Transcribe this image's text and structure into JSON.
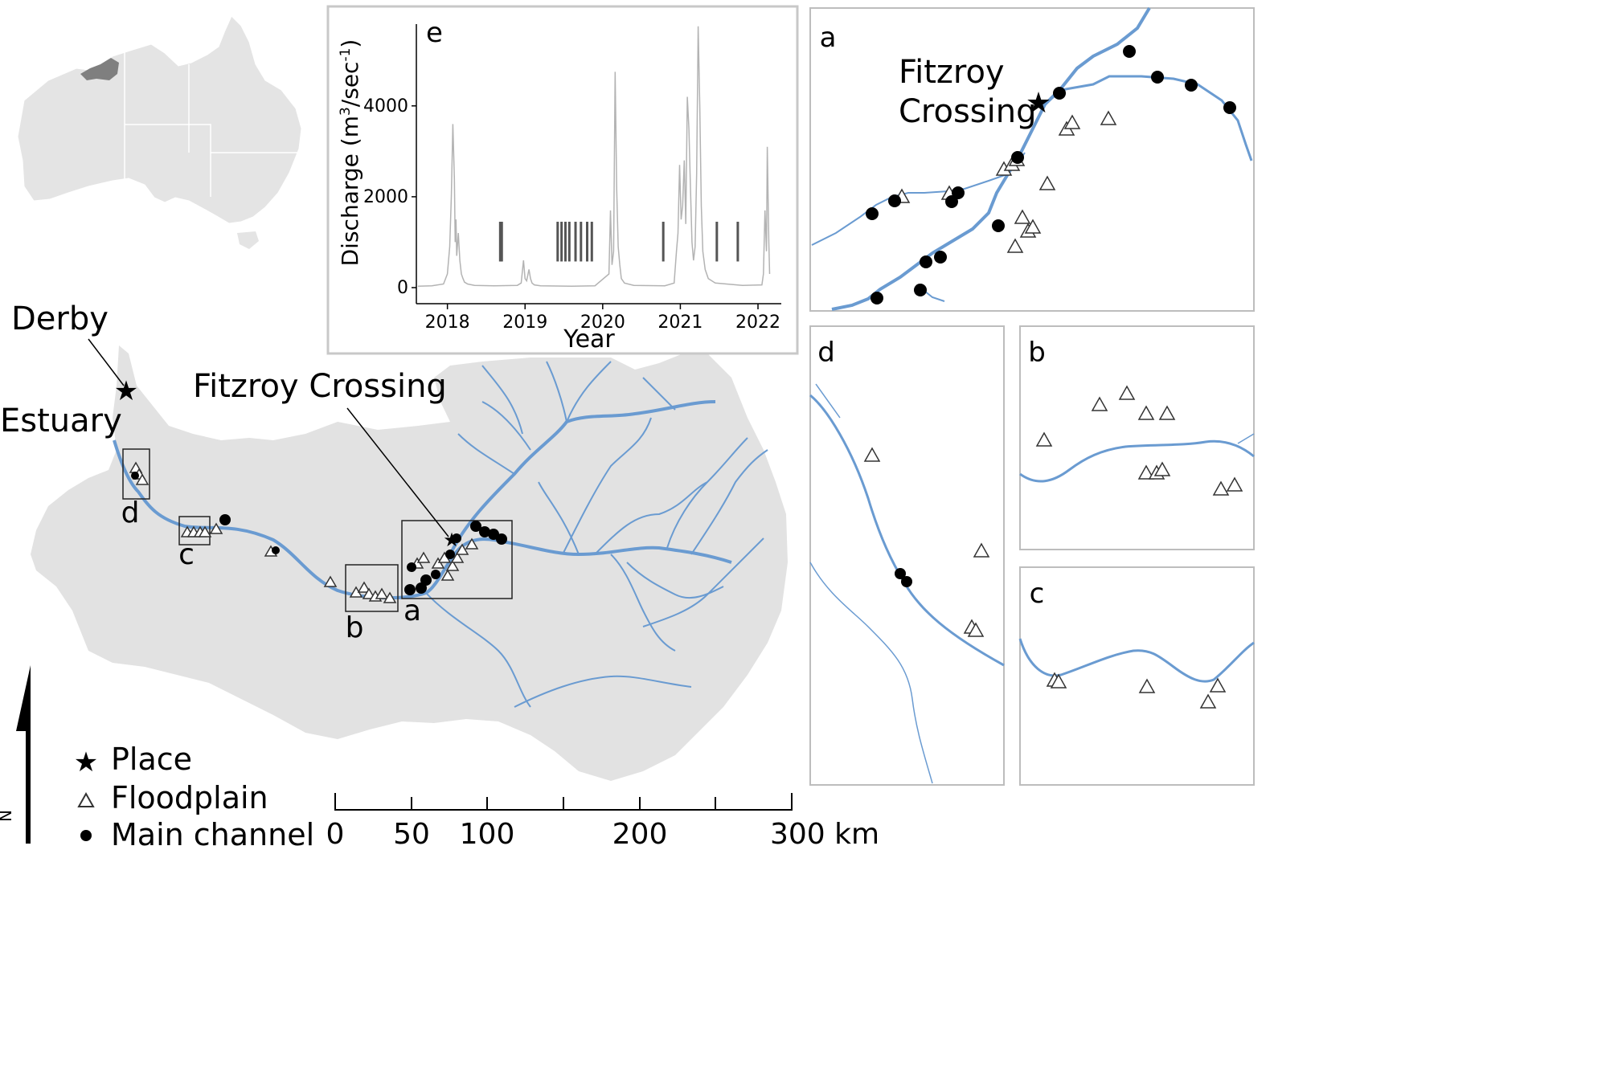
{
  "labels": {
    "derby": "Derby",
    "estuary": "Estuary",
    "fitzroy_crossing": "Fitzroy Crossing",
    "inset_a_place_line1": "Fitzroy",
    "inset_a_place_line2": "Crossing"
  },
  "box_letters": {
    "a": "a",
    "b": "b",
    "c": "c",
    "d": "d",
    "e": "e"
  },
  "legend": {
    "place": "Place",
    "floodplain": "Floodplain",
    "main_channel": "Main channel",
    "north": "N"
  },
  "scale_bar": {
    "labels": [
      "0",
      "50",
      "100",
      "200",
      "300 km"
    ]
  },
  "chart_data": {
    "type": "line",
    "title": "e",
    "xlabel": "Year",
    "ylabel_prefix": "Discharge (m",
    "ylabel_sup1": "3",
    "ylabel_mid": "/sec",
    "ylabel_sup2": "-1",
    "ylabel_suffix": ")",
    "xlim": [
      2017.6,
      2022.3
    ],
    "ylim": [
      0,
      5800
    ],
    "x_ticks": [
      2018,
      2019,
      2020,
      2021,
      2022
    ],
    "x_tick_labels": [
      "2018",
      "2019",
      "2020",
      "2021",
      "2022"
    ],
    "y_ticks": [
      0,
      2000,
      4000
    ],
    "y_tick_labels": [
      "0",
      "2000",
      "4000"
    ],
    "series": [
      {
        "x": [
          2017.62,
          2017.8,
          2017.95,
          2018.0,
          2018.03,
          2018.05,
          2018.07,
          2018.09,
          2018.1,
          2018.11,
          2018.12,
          2018.14,
          2018.16,
          2018.18,
          2018.2,
          2018.22,
          2018.26,
          2018.35,
          2018.6,
          2018.9,
          2018.95,
          2018.98,
          2019.0,
          2019.02,
          2019.05,
          2019.07,
          2019.09,
          2019.12,
          2019.2,
          2019.6,
          2019.9,
          2020.08,
          2020.1,
          2020.12,
          2020.14,
          2020.16,
          2020.18,
          2020.2,
          2020.22,
          2020.24,
          2020.28,
          2020.4,
          2020.8,
          2020.92,
          2020.95,
          2020.97,
          2020.99,
          2021.01,
          2021.03,
          2021.05,
          2021.07,
          2021.09,
          2021.11,
          2021.13,
          2021.15,
          2021.17,
          2021.19,
          2021.21,
          2021.23,
          2021.25,
          2021.27,
          2021.29,
          2021.32,
          2021.36,
          2021.45,
          2021.8,
          2022.05,
          2022.07,
          2022.09,
          2022.11,
          2022.12,
          2022.14,
          2022.15
        ],
        "y": [
          30,
          40,
          80,
          300,
          900,
          2000,
          3600,
          2400,
          1000,
          1500,
          700,
          1200,
          600,
          300,
          200,
          120,
          80,
          50,
          40,
          50,
          100,
          600,
          200,
          150,
          400,
          200,
          100,
          60,
          40,
          30,
          40,
          300,
          1700,
          500,
          800,
          4750,
          2200,
          900,
          500,
          200,
          100,
          50,
          40,
          100,
          800,
          1200,
          2700,
          1500,
          1800,
          2800,
          1400,
          4200,
          3500,
          2200,
          1000,
          600,
          900,
          2500,
          5750,
          4000,
          1800,
          800,
          400,
          200,
          100,
          50,
          60,
          300,
          1700,
          800,
          3100,
          1000,
          300
        ]
      }
    ],
    "event_bars": [
      2018.68,
      2018.69,
      2018.7,
      2019.42,
      2019.47,
      2019.52,
      2019.57,
      2019.65,
      2019.72,
      2019.8,
      2019.86,
      2020.78,
      2021.47,
      2021.74
    ]
  }
}
